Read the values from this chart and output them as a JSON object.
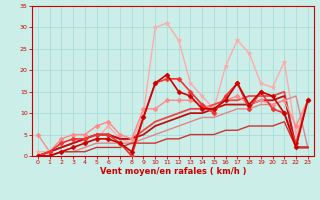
{
  "xlabel": "Vent moyen/en rafales ( km/h )",
  "xlim": [
    -0.5,
    23.5
  ],
  "ylim": [
    0,
    35
  ],
  "xticks": [
    0,
    1,
    2,
    3,
    4,
    5,
    6,
    7,
    8,
    9,
    10,
    11,
    12,
    13,
    14,
    15,
    16,
    17,
    18,
    19,
    20,
    21,
    22,
    23
  ],
  "yticks": [
    0,
    5,
    10,
    15,
    20,
    25,
    30,
    35
  ],
  "bg_color": "#cceee8",
  "grid_color": "#aaddda",
  "lines": [
    {
      "x": [
        0,
        1,
        2,
        3,
        4,
        5,
        6,
        7,
        8,
        9,
        10,
        11,
        12,
        13,
        14,
        15,
        16,
        17,
        18,
        19,
        20,
        21,
        22,
        23
      ],
      "y": [
        1,
        1,
        3,
        4,
        3,
        4,
        7,
        4,
        3,
        10,
        30,
        31,
        27,
        17,
        14,
        11,
        21,
        27,
        24,
        17,
        16,
        22,
        5,
        13
      ],
      "color": "#ffaaaa",
      "lw": 1.0,
      "marker": "*",
      "ms": 3.5,
      "zorder": 2
    },
    {
      "x": [
        0,
        1,
        2,
        3,
        4,
        5,
        6,
        7,
        8,
        9,
        10,
        11,
        12,
        13,
        14,
        15,
        16,
        17,
        18,
        19,
        20,
        21,
        22,
        23
      ],
      "y": [
        5,
        1,
        4,
        5,
        5,
        7,
        8,
        5,
        4,
        11,
        11,
        13,
        13,
        13,
        12,
        11,
        13,
        14,
        12,
        13,
        12,
        13,
        7,
        13
      ],
      "color": "#ff8888",
      "lw": 1.0,
      "marker": "D",
      "ms": 2.5,
      "zorder": 3
    },
    {
      "x": [
        0,
        1,
        2,
        3,
        4,
        5,
        6,
        7,
        8,
        9,
        10,
        11,
        12,
        13,
        14,
        15,
        16,
        17,
        18,
        19,
        20,
        21,
        22,
        23
      ],
      "y": [
        0,
        1,
        3,
        4,
        4,
        5,
        5,
        3,
        0,
        9,
        17,
        18,
        18,
        15,
        12,
        10,
        14,
        17,
        11,
        15,
        11,
        10,
        3,
        13
      ],
      "color": "#ee3333",
      "lw": 1.2,
      "marker": "D",
      "ms": 2.5,
      "zorder": 4
    },
    {
      "x": [
        0,
        1,
        2,
        3,
        4,
        5,
        6,
        7,
        8,
        9,
        10,
        11,
        12,
        13,
        14,
        15,
        16,
        17,
        18,
        19,
        20,
        21,
        22,
        23
      ],
      "y": [
        0,
        0,
        1,
        2,
        3,
        4,
        4,
        3,
        1,
        9,
        17,
        19,
        15,
        14,
        11,
        11,
        13,
        17,
        12,
        15,
        14,
        10,
        2,
        13
      ],
      "color": "#cc0000",
      "lw": 1.2,
      "marker": "D",
      "ms": 2.5,
      "zorder": 5
    },
    {
      "x": [
        0,
        1,
        2,
        3,
        4,
        5,
        6,
        7,
        8,
        9,
        10,
        11,
        12,
        13,
        14,
        15,
        16,
        17,
        18,
        19,
        20,
        21,
        22,
        23
      ],
      "y": [
        0,
        0,
        1,
        1,
        2,
        3,
        3,
        3,
        3,
        4,
        5,
        6,
        7,
        8,
        9,
        9,
        10,
        11,
        11,
        12,
        12,
        13,
        14,
        2
      ],
      "color": "#dd8888",
      "lw": 1.0,
      "marker": null,
      "ms": 0,
      "zorder": 2
    },
    {
      "x": [
        0,
        1,
        2,
        3,
        4,
        5,
        6,
        7,
        8,
        9,
        10,
        11,
        12,
        13,
        14,
        15,
        16,
        17,
        18,
        19,
        20,
        21,
        22,
        23
      ],
      "y": [
        0,
        1,
        2,
        3,
        4,
        5,
        5,
        4,
        4,
        6,
        8,
        9,
        10,
        11,
        11,
        12,
        13,
        13,
        14,
        14,
        14,
        15,
        2,
        2
      ],
      "color": "#ee4444",
      "lw": 1.3,
      "marker": null,
      "ms": 0,
      "zorder": 2
    },
    {
      "x": [
        0,
        1,
        2,
        3,
        4,
        5,
        6,
        7,
        8,
        9,
        10,
        11,
        12,
        13,
        14,
        15,
        16,
        17,
        18,
        19,
        20,
        21,
        22,
        23
      ],
      "y": [
        0,
        1,
        2,
        3,
        4,
        5,
        5,
        4,
        4,
        5,
        7,
        8,
        9,
        10,
        10,
        11,
        12,
        12,
        12,
        13,
        13,
        14,
        2,
        2
      ],
      "color": "#bb1111",
      "lw": 1.3,
      "marker": null,
      "ms": 0,
      "zorder": 2
    },
    {
      "x": [
        0,
        1,
        2,
        3,
        4,
        5,
        6,
        7,
        8,
        9,
        10,
        11,
        12,
        13,
        14,
        15,
        16,
        17,
        18,
        19,
        20,
        21,
        22,
        23
      ],
      "y": [
        0,
        0,
        1,
        1,
        1,
        2,
        2,
        2,
        3,
        3,
        3,
        4,
        4,
        5,
        5,
        5,
        6,
        6,
        7,
        7,
        7,
        8,
        2,
        2
      ],
      "color": "#cc3333",
      "lw": 1.0,
      "marker": null,
      "ms": 0,
      "zorder": 2
    }
  ]
}
